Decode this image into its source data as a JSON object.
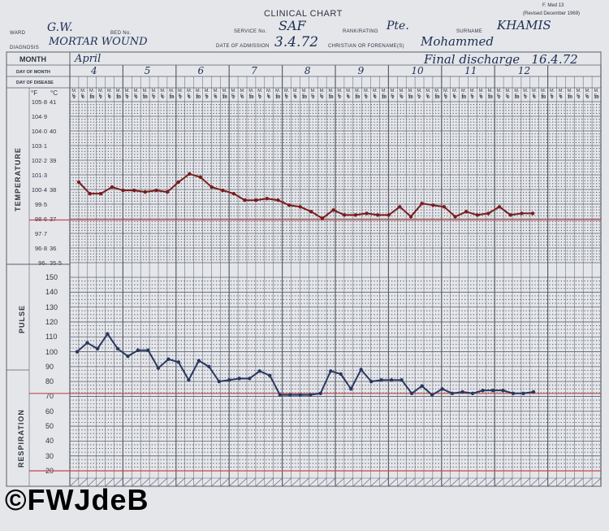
{
  "form": {
    "code": "F. Med 13",
    "revised": "(Revised December 1969)",
    "title": "CLINICAL CHART"
  },
  "header": {
    "ward_label": "WARD",
    "ward_value": "G.W.",
    "bed_label": "BED No.",
    "service_label": "SERVICE No.",
    "service_value": "SAF",
    "rank_label": "RANK/RATING",
    "rank_value": "Pte.",
    "surname_label": "SURNAME",
    "surname_value": "KHAMIS",
    "diagnosis_label": "DIAGNOSIS",
    "diagnosis_value": "MORTAR WOUND",
    "admission_label": "DATE OF ADMISSION",
    "admission_value": "3.4.72",
    "forenames_label": "CHRISTIAN OR FORENAME(S)",
    "forenames_value": "Mohammed"
  },
  "rows": {
    "month_label": "MONTH",
    "month_value": "April",
    "discharge_note": "Final discharge   16.4.72",
    "day_of_month_label": "DAY OF MONTH",
    "day_of_disease_label": "DAY OF DISEASE",
    "days": [
      "4",
      "5",
      "6",
      "7",
      "8",
      "9",
      "10",
      "11",
      "12"
    ]
  },
  "time_marks": {
    "top": "M. E.",
    "bottom": "2 6 10 2 6 10"
  },
  "scale": {
    "unit_f": "°F",
    "unit_c": "°C",
    "temp_f": [
      "105·8",
      "104·9",
      "104·0",
      "103·1",
      "102·2",
      "101·3",
      "100·4",
      "99·5",
      "98·6",
      "97·7",
      "96·8",
      "96·"
    ],
    "temp_c": [
      "41",
      "",
      "40",
      "",
      "39",
      "",
      "38",
      "",
      "37",
      "",
      "36",
      "35·5"
    ],
    "pulse_resp": [
      "150",
      "140",
      "130",
      "120",
      "110",
      "100",
      "90",
      "80",
      "70",
      "60",
      "50",
      "40",
      "30",
      "20"
    ]
  },
  "section_labels": {
    "temperature": "TEMPERATURE",
    "pulse": "PULSE",
    "respiration": "RESPIRATION"
  },
  "watermark": "©FWJdeB",
  "chart_data": {
    "type": "line",
    "series": [
      {
        "values_f": [
          100.9,
          100.2,
          100.2,
          100.6,
          100.4,
          100.4,
          100.3,
          100.4,
          100.3,
          100.9,
          101.4,
          101.2,
          100.6,
          100.4,
          100.2,
          99.8,
          99.8,
          99.9,
          99.8,
          99.5,
          99.4,
          99.1,
          98.7,
          99.2,
          98.9,
          98.9,
          99.0,
          98.9,
          98.9,
          99.4,
          98.8,
          99.6,
          99.5,
          99.4,
          98.8,
          99.1,
          98.9,
          99.0,
          99.4,
          98.9,
          99.0,
          99.0
        ]
      },
      {
        "values": [
          100,
          106,
          102,
          112,
          102,
          97,
          101,
          101,
          89,
          95,
          93,
          81,
          94,
          90,
          80,
          81,
          82,
          82,
          87,
          84,
          71,
          71,
          71,
          71,
          72,
          87,
          85,
          75,
          88,
          80,
          81,
          81,
          81,
          72,
          77,
          71,
          75,
          72,
          73,
          72,
          74,
          74,
          74,
          72,
          72,
          73
        ]
      }
    ],
    "red_reference_lines": [
      "98.6 °F",
      "72 pulse",
      "20 respiration"
    ]
  },
  "colors": {
    "paper": "#e4e6ea",
    "grid": "#5a5f6b",
    "temp_line": "#7a1c1c",
    "pulse_line": "#2a3760",
    "red_line": "#c24a4a"
  }
}
